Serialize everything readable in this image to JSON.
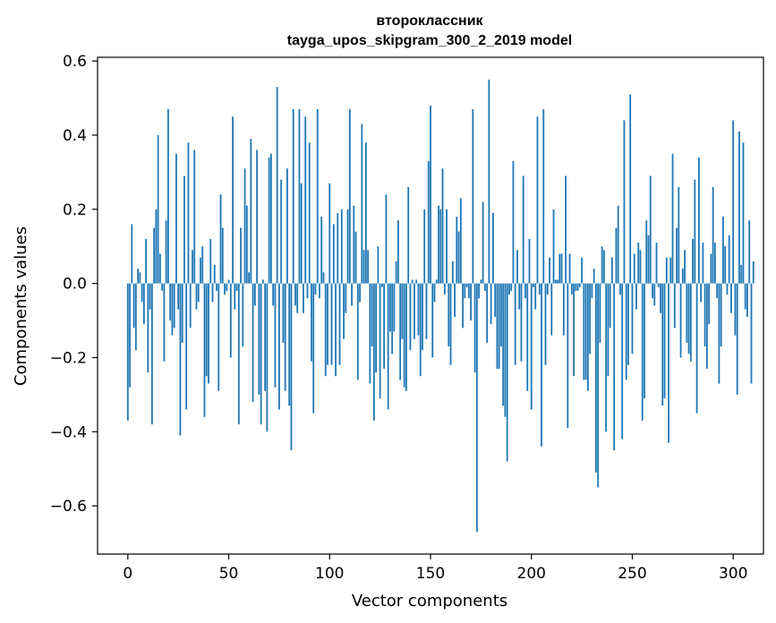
{
  "chart_data": {
    "type": "bar",
    "title": "второклассник",
    "subtitle": "tayga_upos_skipgram_300_2_2019 model",
    "xlabel": "Vector components",
    "ylabel": "Components values",
    "xlim": [
      -15,
      315
    ],
    "ylim": [
      -0.73,
      0.61
    ],
    "xticks": [
      0,
      50,
      100,
      150,
      200,
      250,
      300
    ],
    "yticks": [
      -0.6,
      -0.4,
      -0.2,
      0.0,
      0.2,
      0.4,
      0.6
    ],
    "xtick_labels": [
      "0",
      "50",
      "100",
      "150",
      "200",
      "250",
      "300"
    ],
    "ytick_labels": [
      "−0.6",
      "−0.4",
      "−0.2",
      "0.0",
      "0.2",
      "0.4",
      "0.6"
    ],
    "bar_color": "#1f77b4",
    "grid": false,
    "x_start": 0,
    "values": [
      -0.37,
      -0.28,
      0.16,
      -0.12,
      -0.18,
      0.04,
      0.03,
      -0.05,
      -0.11,
      0.12,
      -0.24,
      -0.07,
      -0.38,
      0.15,
      0.2,
      0.4,
      0.08,
      -0.02,
      -0.21,
      0.17,
      0.47,
      -0.1,
      -0.14,
      -0.12,
      0.35,
      -0.07,
      -0.41,
      -0.16,
      0.29,
      -0.34,
      0.38,
      -0.12,
      0.09,
      0.36,
      -0.07,
      -0.05,
      0.07,
      0.1,
      -0.36,
      -0.25,
      -0.27,
      0.12,
      -0.05,
      0.05,
      -0.02,
      -0.29,
      0.24,
      0.15,
      -0.03,
      -0.02,
      0.01,
      -0.2,
      0.45,
      -0.07,
      -0.02,
      -0.38,
      0.15,
      -0.17,
      0.31,
      0.21,
      0.03,
      0.39,
      -0.32,
      -0.06,
      0.36,
      -0.3,
      -0.38,
      0.01,
      -0.29,
      -0.4,
      0.34,
      0.35,
      -0.06,
      -0.28,
      0.53,
      -0.34,
      0.28,
      -0.16,
      -0.29,
      0.31,
      -0.33,
      -0.45,
      0.47,
      -0.06,
      -0.08,
      0.47,
      0.27,
      -0.08,
      0.45,
      -0.04,
      0.38,
      -0.21,
      -0.35,
      -0.03,
      0.47,
      -0.04,
      0.18,
      0.03,
      -0.25,
      -0.22,
      0.27,
      -0.22,
      0.16,
      -0.25,
      0.19,
      -0.22,
      0.2,
      -0.15,
      -0.08,
      0.2,
      0.47,
      -0.06,
      0.21,
      0.14,
      -0.26,
      -0.05,
      0.43,
      0.09,
      0.38,
      0.09,
      -0.27,
      -0.17,
      -0.37,
      -0.24,
      0.1,
      -0.31,
      -0.01,
      -0.23,
      0.24,
      -0.34,
      -0.13,
      -0.19,
      -0.13,
      0.06,
      0.17,
      -0.26,
      -0.15,
      -0.28,
      -0.29,
      0.26,
      -0.18,
      0.01,
      -0.15,
      0.01,
      -0.14,
      -0.25,
      -0.18,
      0.2,
      -0.15,
      0.33,
      0.48,
      -0.2,
      -0.05,
      0.01,
      0.21,
      0.2,
      0.31,
      -0.03,
      0.2,
      -0.17,
      -0.22,
      0.06,
      -0.09,
      0.18,
      0.14,
      0.23,
      -0.12,
      -0.04,
      -0.01,
      -0.04,
      -0.1,
      0.47,
      -0.24,
      -0.67,
      -0.04,
      0.01,
      0.22,
      -0.02,
      -0.16,
      0.55,
      -0.11,
      0.19,
      -0.09,
      -0.23,
      -0.23,
      -0.17,
      -0.33,
      -0.36,
      -0.48,
      -0.03,
      -0.02,
      0.33,
      -0.22,
      0.09,
      -0.07,
      -0.21,
      0.29,
      -0.04,
      -0.29,
      0.12,
      -0.34,
      -0.01,
      -0.07,
      0.45,
      -0.03,
      -0.44,
      0.47,
      -0.22,
      -0.03,
      0.07,
      -0.14,
      0.2,
      0.01,
      0.01,
      0.08,
      0.08,
      -0.14,
      0.29,
      -0.39,
      0.08,
      -0.03,
      -0.25,
      -0.02,
      -0.02,
      -0.01,
      0.07,
      -0.26,
      -0.26,
      -0.29,
      -0.19,
      -0.04,
      0.04,
      -0.51,
      -0.55,
      -0.16,
      0.1,
      0.09,
      -0.4,
      -0.25,
      -0.12,
      0.07,
      -0.45,
      0.15,
      0.21,
      -0.03,
      -0.42,
      0.44,
      -0.26,
      -0.22,
      0.51,
      -0.19,
      0.08,
      -0.07,
      0.11,
      0.09,
      -0.37,
      -0.31,
      0.17,
      0.13,
      0.29,
      -0.04,
      -0.06,
      0.11,
      -0.01,
      -0.08,
      -0.33,
      -0.31,
      0.07,
      -0.43,
      0.07,
      0.35,
      -0.12,
      0.15,
      0.26,
      -0.2,
      0.04,
      0.09,
      -0.16,
      -0.19,
      -0.21,
      0.12,
      0.28,
      -0.35,
      0.34,
      -0.05,
      0.11,
      -0.17,
      -0.23,
      -0.11,
      0.08,
      0.26,
      0.11,
      -0.04,
      -0.27,
      -0.17,
      0.18,
      0.1,
      -0.03,
      0.13,
      -0.08,
      0.44,
      -0.14,
      -0.3,
      0.41,
      0.05,
      0.38,
      -0.07,
      -0.09,
      0.17,
      -0.27,
      0.06
    ]
  }
}
